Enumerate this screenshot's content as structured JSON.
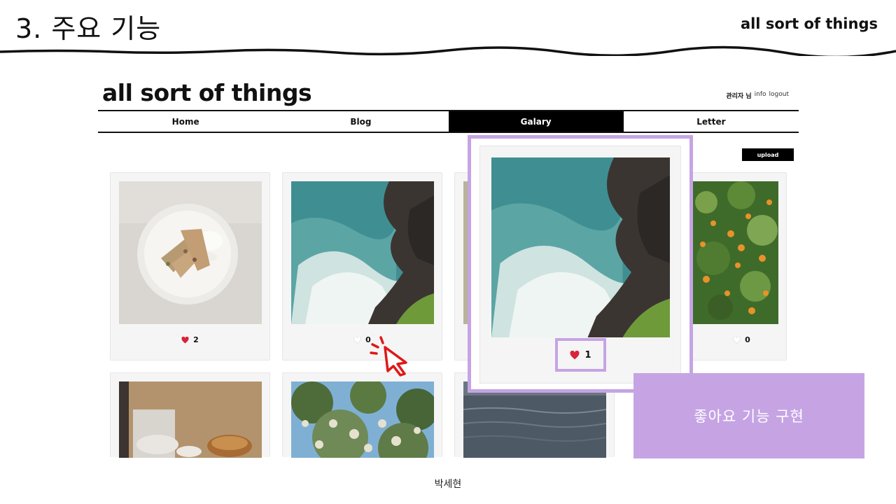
{
  "slide": {
    "title": "3. 주요 기능",
    "brand": "all sort of things",
    "footer": "박세현",
    "caption": "좋아요 기능 구현"
  },
  "site": {
    "logo": "all sort of things",
    "links": {
      "user": "관리자 님",
      "info": "info",
      "logout": "logout"
    },
    "nav": [
      "Home",
      "Blog",
      "Galary",
      "Letter"
    ],
    "nav_active": "Galary",
    "upload_label": "upload"
  },
  "gallery": {
    "row1": [
      {
        "photo": "dessert-plate",
        "likes": "2",
        "liked": true
      },
      {
        "photo": "sea-cliff",
        "likes": "0",
        "liked": false
      },
      {
        "photo": "hidden",
        "likes": "",
        "liked": false
      },
      {
        "photo": "orange-flowers",
        "likes": "0",
        "liked": false
      }
    ],
    "row2": [
      {
        "photo": "kitchen-bread"
      },
      {
        "photo": "white-flower-tree"
      },
      {
        "photo": "evening-sea"
      }
    ],
    "zoomed": {
      "photo": "sea-cliff",
      "likes": "1",
      "liked": true
    }
  },
  "colors": {
    "accent": "#c6a4e4",
    "heart": "#d9243a",
    "nav_active_bg": "#000000"
  }
}
